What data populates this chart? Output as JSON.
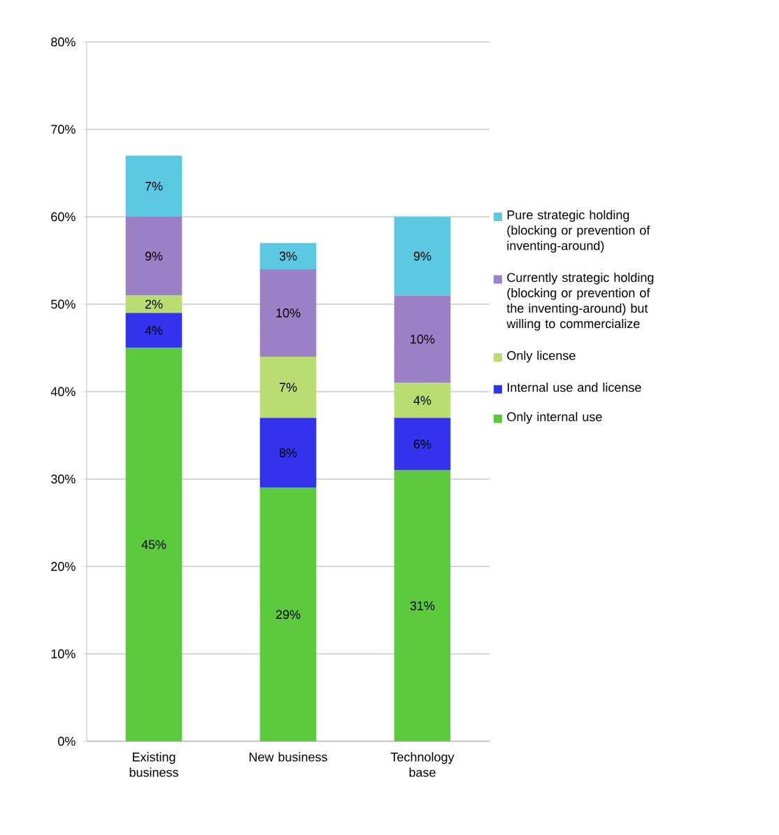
{
  "chart_data": {
    "type": "bar",
    "stacked": true,
    "categories": [
      "Existing business",
      "New business",
      "Technology base"
    ],
    "series": [
      {
        "name": "Only internal use",
        "color": "#5cc83c",
        "values": [
          45,
          29,
          31
        ],
        "value_labels": [
          "45%",
          "29%",
          "31%"
        ]
      },
      {
        "name": "Internal use and license",
        "color": "#3333ee",
        "values": [
          4,
          8,
          6
        ],
        "value_labels": [
          "4%",
          "8%",
          "6%"
        ]
      },
      {
        "name": "Only license",
        "color": "#b8dc70",
        "values": [
          2,
          7,
          4
        ],
        "value_labels": [
          "2%",
          "7%",
          "4%"
        ]
      },
      {
        "name": "Currently strategic holding (blocking or prevention of the inventing-around) but willing to commercialize",
        "color": "#9b80c6",
        "values": [
          9,
          10,
          10
        ],
        "value_labels": [
          "9%",
          "10%",
          "10%"
        ]
      },
      {
        "name": "Pure strategic holding (blocking or prevention of inventing-around)",
        "color": "#5cc8e2",
        "values": [
          7,
          3,
          9
        ],
        "value_labels": [
          "7%",
          "3%",
          "9%"
        ]
      }
    ],
    "ylim": [
      0,
      80
    ],
    "yticks": [
      {
        "value": 0,
        "label": "0%"
      },
      {
        "value": 10,
        "label": "10%"
      },
      {
        "value": 20,
        "label": "20%"
      },
      {
        "value": 30,
        "label": "30%"
      },
      {
        "value": 40,
        "label": "40%"
      },
      {
        "value": 50,
        "label": "50%"
      },
      {
        "value": 60,
        "label": "60%"
      },
      {
        "value": 70,
        "label": "70%"
      },
      {
        "value": 80,
        "label": "80%"
      }
    ],
    "grid": "y",
    "legend": "right"
  }
}
